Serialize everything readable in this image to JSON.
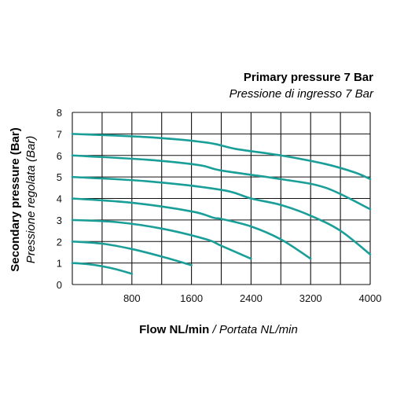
{
  "chart_data": {
    "type": "line",
    "title": "Primary pressure 7 Bar",
    "subtitle": "Pressione di ingresso 7 Bar",
    "xlabel": "Flow NL/min",
    "xlabel_sep": " / ",
    "xlabel_italic": "Portata NL/min",
    "ylabel": "Secondary pressure (Bar)",
    "ylabel_italic": "Pressione regolata (Bar)",
    "xlim": [
      0,
      4000
    ],
    "ylim": [
      0,
      8
    ],
    "xticks": [
      "800",
      "1600",
      "2400",
      "3200",
      "4000"
    ],
    "yticks": [
      "0",
      "1",
      "2",
      "3",
      "4",
      "5",
      "6",
      "7",
      "8"
    ],
    "grid": true,
    "line_color": "#1a9e98",
    "series": [
      {
        "x": [
          0,
          200,
          400,
          600,
          800
        ],
        "y": [
          1.0,
          0.95,
          0.85,
          0.7,
          0.5
        ]
      },
      {
        "x": [
          0,
          400,
          800,
          1200,
          1600
        ],
        "y": [
          2.0,
          1.9,
          1.65,
          1.3,
          0.9
        ]
      },
      {
        "x": [
          0,
          600,
          1200,
          1800,
          2000,
          2400
        ],
        "y": [
          3.0,
          2.9,
          2.6,
          2.1,
          1.8,
          1.2
        ]
      },
      {
        "x": [
          0,
          800,
          1600,
          1900,
          2000,
          2400,
          2800,
          3200
        ],
        "y": [
          4.0,
          3.8,
          3.4,
          3.1,
          3.05,
          2.7,
          2.1,
          1.2
        ]
      },
      {
        "x": [
          0,
          1000,
          2000,
          2400,
          2800,
          3200,
          3600,
          4000
        ],
        "y": [
          5.0,
          4.8,
          4.4,
          4.0,
          3.7,
          3.2,
          2.5,
          1.4
        ]
      },
      {
        "x": [
          0,
          1000,
          1700,
          2000,
          2800,
          3400,
          4000
        ],
        "y": [
          6.0,
          5.8,
          5.55,
          5.3,
          4.9,
          4.5,
          3.5
        ]
      },
      {
        "x": [
          0,
          1000,
          1800,
          2200,
          2800,
          3400,
          3800,
          4000
        ],
        "y": [
          7.0,
          6.85,
          6.6,
          6.3,
          6.0,
          5.6,
          5.2,
          4.9
        ]
      }
    ]
  }
}
